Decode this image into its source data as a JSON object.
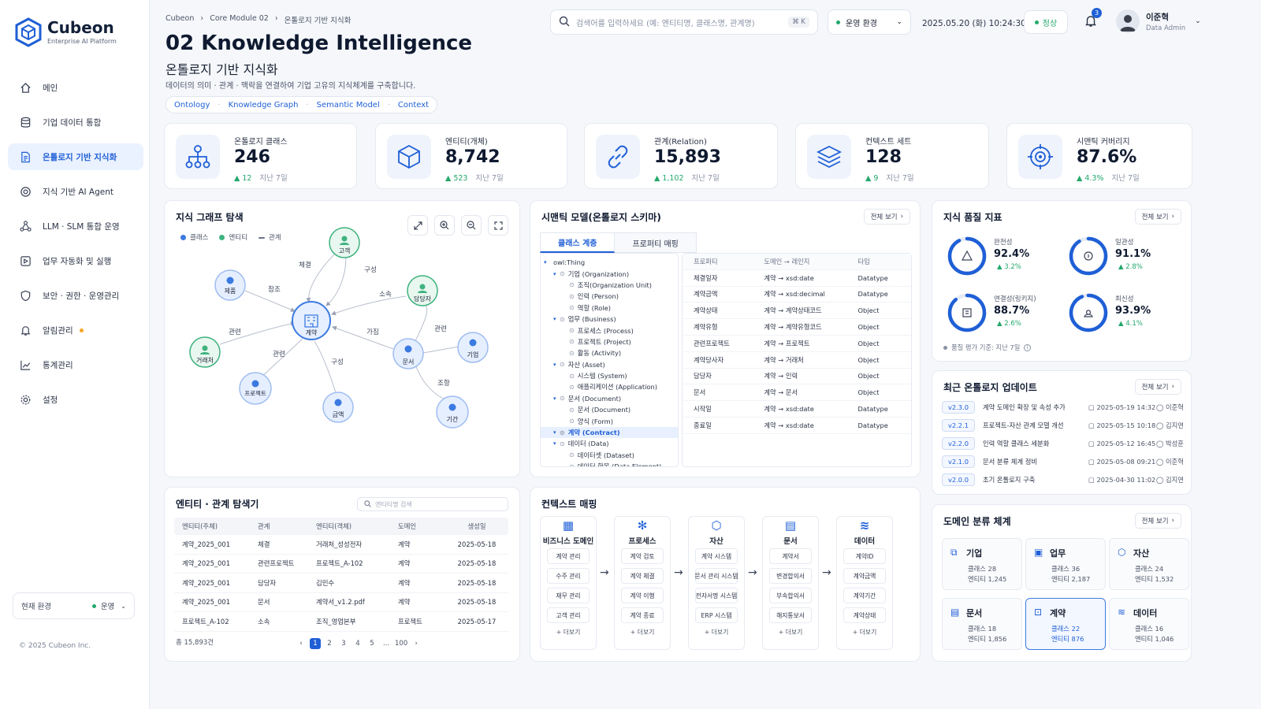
{
  "brand": {
    "name": "Cubeon",
    "tagline": "Enterprise AI Platform",
    "copyright": "© 2025 Cubeon Inc."
  },
  "colors": {
    "accent": "#1f5fd6",
    "positive": "#22a86b",
    "class_node": "#3b7ae0",
    "entity_node": "#3fb27f",
    "relation": "#6b7387",
    "alert": "#f5a623"
  },
  "sidebar": {
    "items": [
      {
        "label": "메인",
        "icon": "home-icon"
      },
      {
        "label": "기업 데이터 통합",
        "icon": "database-icon"
      },
      {
        "label": "온톨로지 기반 지식화",
        "icon": "document-icon"
      },
      {
        "label": "지식 기반 AI Agent",
        "icon": "target-icon"
      },
      {
        "label": "LLM · SLM 통합 운영",
        "icon": "network-icon"
      },
      {
        "label": "업무 자동화 및 실행",
        "icon": "automation-icon"
      },
      {
        "label": "보안 · 권한 · 운영관리",
        "icon": "shield-icon"
      },
      {
        "label": "알림관리",
        "icon": "bell-icon"
      },
      {
        "label": "통계관리",
        "icon": "chart-icon"
      },
      {
        "label": "설정",
        "icon": "gear-icon"
      }
    ],
    "env_label": "현재 환경",
    "env_value": "운영"
  },
  "topbar": {
    "search_placeholder": "검색어를 입력하세요 (예: 엔티티명, 클래스명, 관계명)",
    "shortcut": "⌘ K",
    "env": "운영 환경",
    "datetime": "2025.05.20 (화) 10:24:30",
    "status": "정상",
    "notifications": "3",
    "user_name": "이준혁",
    "user_role": "Data Admin"
  },
  "breadcrumb": [
    "Cubeon",
    "Core Module 02",
    "온톨로지 기반 지식화"
  ],
  "page": {
    "title": "02 Knowledge Intelligence",
    "subtitle": "온톨로지 기반 지식화",
    "description": "데이터의 의미 · 관계 · 맥락을 연결하여 기업 고유의 지식체계를 구축합니다.",
    "tags": [
      "Ontology",
      "Knowledge Graph",
      "Semantic Model",
      "Context"
    ]
  },
  "stats": [
    {
      "label": "온톨로지 클래스",
      "value": "246",
      "delta": "▲ 12",
      "period": "지난 7일",
      "icon": "hierarchy-icon"
    },
    {
      "label": "엔티티(개체)",
      "value": "8,742",
      "delta": "▲ 523",
      "period": "지난 7일",
      "icon": "cube-icon"
    },
    {
      "label": "관계(Relation)",
      "value": "15,893",
      "delta": "▲ 1,102",
      "period": "지난 7일",
      "icon": "link-icon"
    },
    {
      "label": "컨텍스트 세트",
      "value": "128",
      "delta": "▲ 9",
      "period": "지난 7일",
      "icon": "layers-icon"
    },
    {
      "label": "시맨틱 커버리지",
      "value": "87.6%",
      "delta": "▲ 4.3%",
      "period": "지난 7일",
      "icon": "target-icon"
    }
  ],
  "graph": {
    "title": "지식 그래프 탐색",
    "legend": [
      "클래스",
      "엔티티",
      "관계"
    ],
    "nodes": [
      "계약",
      "고객",
      "제품",
      "담당자",
      "거래처",
      "문서",
      "기업",
      "프로젝트",
      "금액",
      "기간"
    ],
    "edges": [
      "체결",
      "구성",
      "참조",
      "소속",
      "관련",
      "가짐",
      "관련",
      "관련",
      "구성",
      "조항"
    ]
  },
  "semantic": {
    "title": "시맨틱 모델(온톨로지 스키마)",
    "view_all": "전체 보기",
    "tabs": [
      "클래스 계층",
      "프로퍼티 매핑"
    ],
    "tree": [
      {
        "text": "owl:Thing",
        "level": 0
      },
      {
        "text": "기업 (Organization)",
        "level": 1
      },
      {
        "text": "조직(Organization Unit)",
        "level": 2
      },
      {
        "text": "인력 (Person)",
        "level": 2
      },
      {
        "text": "역할 (Role)",
        "level": 2
      },
      {
        "text": "업무 (Business)",
        "level": 1
      },
      {
        "text": "프로세스 (Process)",
        "level": 2
      },
      {
        "text": "프로젝트 (Project)",
        "level": 2
      },
      {
        "text": "활동 (Activity)",
        "level": 2
      },
      {
        "text": "자산 (Asset)",
        "level": 1
      },
      {
        "text": "시스템 (System)",
        "level": 2
      },
      {
        "text": "애플리케이션 (Application)",
        "level": 2
      },
      {
        "text": "문서 (Document)",
        "level": 1
      },
      {
        "text": "문서 (Document)",
        "level": 2
      },
      {
        "text": "양식 (Form)",
        "level": 2
      },
      {
        "text": "계약 (Contract)",
        "level": 1,
        "selected": true
      },
      {
        "text": "데이터 (Data)",
        "level": 1
      },
      {
        "text": "데이터셋 (Dataset)",
        "level": 2
      },
      {
        "text": "데이터 항목 (Data Element)",
        "level": 2
      }
    ],
    "prop_headers": [
      "프로퍼티",
      "도메인 → 레인지",
      "타입"
    ],
    "props": [
      [
        "체결일자",
        "계약 → xsd:date",
        "Datatype"
      ],
      [
        "계약금액",
        "계약 → xsd:decimal",
        "Datatype"
      ],
      [
        "계약상태",
        "계약 → 계약상태코드",
        "Object"
      ],
      [
        "계약유형",
        "계약 → 계약유형코드",
        "Object"
      ],
      [
        "관련프로젝트",
        "계약 → 프로젝트",
        "Object"
      ],
      [
        "계약당사자",
        "계약 → 거래처",
        "Object"
      ],
      [
        "담당자",
        "계약 → 인력",
        "Object"
      ],
      [
        "문서",
        "계약 → 문서",
        "Object"
      ],
      [
        "시작일",
        "계약 → xsd:date",
        "Datatype"
      ],
      [
        "종료일",
        "계약 → xsd:date",
        "Datatype"
      ]
    ]
  },
  "quality": {
    "title": "지식 품질 지표",
    "view_all": "전체 보기",
    "metrics": [
      {
        "label": "완전성",
        "value": "92.4%",
        "delta": "▲ 3.2%",
        "ratio": 0.924,
        "icon": "warning-icon"
      },
      {
        "label": "일관성",
        "value": "91.1%",
        "delta": "▲ 2.8%",
        "ratio": 0.911,
        "icon": "check-circle-icon"
      },
      {
        "label": "연결성(링키지)",
        "value": "88.7%",
        "delta": "▲ 2.6%",
        "ratio": 0.887,
        "icon": "grid-icon"
      },
      {
        "label": "최신성",
        "value": "93.9%",
        "delta": "▲ 4.1%",
        "ratio": 0.939,
        "icon": "user-icon"
      }
    ],
    "footnote": "품질 평가 기준: 지난 7일"
  },
  "updates": {
    "title": "최근 온톨로지 업데이트",
    "view_all": "전체 보기",
    "rows": [
      {
        "version": "v2.3.0",
        "desc": "계약 도메인 확장 및 속성 추가",
        "date": "2025-05-19 14:32",
        "user": "이준혁"
      },
      {
        "version": "v2.2.1",
        "desc": "프로젝트-자산 관계 모델 개선",
        "date": "2025-05-15 10:18",
        "user": "김지연"
      },
      {
        "version": "v2.2.0",
        "desc": "인력 역할 클래스 세분화",
        "date": "2025-05-12 16:45",
        "user": "박성훈"
      },
      {
        "version": "v2.1.0",
        "desc": "문서 분류 체계 정비",
        "date": "2025-05-08 09:21",
        "user": "이준혁"
      },
      {
        "version": "v2.0.0",
        "desc": "초기 온톨로지 구축",
        "date": "2025-04-30 11:02",
        "user": "김지연"
      }
    ]
  },
  "explorer": {
    "title": "엔티티 · 관계 탐색기",
    "search_placeholder": "엔티티명 검색",
    "headers": [
      "엔티티(주체)",
      "관계",
      "엔티티(객체)",
      "도메인",
      "생성일"
    ],
    "rows": [
      [
        "계약_2025_001",
        "체결",
        "거래처_성성전자",
        "계약",
        "2025-05-18"
      ],
      [
        "계약_2025_001",
        "관련프로젝트",
        "프로젝트_A-102",
        "계약",
        "2025-05-18"
      ],
      [
        "계약_2025_001",
        "담당자",
        "김민수",
        "계약",
        "2025-05-18"
      ],
      [
        "계약_2025_001",
        "문서",
        "계약서_v1.2.pdf",
        "계약",
        "2025-05-18"
      ],
      [
        "프로젝트_A-102",
        "소속",
        "조직_영업본부",
        "프로젝트",
        "2025-05-17"
      ]
    ],
    "total": "총 15,893건",
    "pages": [
      "1",
      "2",
      "3",
      "4",
      "5",
      "...",
      "100"
    ]
  },
  "context": {
    "title": "컨텍스트 매핑",
    "columns": [
      {
        "name": "비즈니스 도메인",
        "icon": "building-icon",
        "items": [
          "계약 관리",
          "수주 관리",
          "재무 관리",
          "고객 관리"
        ]
      },
      {
        "name": "프로세스",
        "icon": "gear-icon",
        "items": [
          "계약 검토",
          "계약 체결",
          "계약 이행",
          "계약 종료"
        ]
      },
      {
        "name": "자산",
        "icon": "cube-icon",
        "items": [
          "계약 시스템",
          "문서 관리 시스템",
          "전자서명 시스템",
          "ERP 시스템"
        ]
      },
      {
        "name": "문서",
        "icon": "file-icon",
        "items": [
          "계약서",
          "변경합의서",
          "부속합의서",
          "해지통보서"
        ]
      },
      {
        "name": "데이터",
        "icon": "database-icon",
        "items": [
          "계약ID",
          "계약금액",
          "계약기간",
          "계약상태"
        ]
      }
    ],
    "more": "+ 더보기"
  },
  "domains": {
    "title": "도메인 분류 체계",
    "view_all": "전체 보기",
    "items": [
      {
        "name": "기업",
        "classes": "클래스  28",
        "entities": "엔티티  1,245",
        "icon": "org-icon"
      },
      {
        "name": "업무",
        "classes": "클래스  36",
        "entities": "엔티티  2,187",
        "icon": "briefcase-icon"
      },
      {
        "name": "자산",
        "classes": "클래스  24",
        "entities": "엔티티  1,532",
        "icon": "cube-icon"
      },
      {
        "name": "문서",
        "classes": "클래스  18",
        "entities": "엔티티  1,856",
        "icon": "file-icon"
      },
      {
        "name": "계약",
        "classes": "클래스  22",
        "entities": "엔티티  876",
        "icon": "contract-icon",
        "selected": true
      },
      {
        "name": "데이터",
        "classes": "클래스  16",
        "entities": "엔티티  1,046",
        "icon": "database-icon"
      }
    ]
  }
}
